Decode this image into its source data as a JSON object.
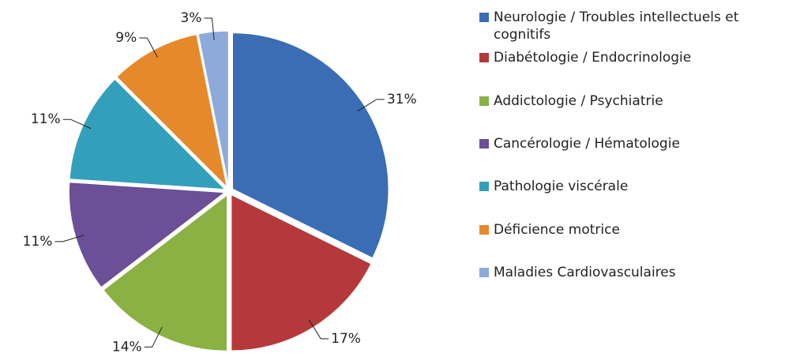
{
  "chart_data": {
    "type": "pie",
    "categories": [
      "Neurologie / Troubles intellectuels et cognitifs",
      "Diabétologie / Endocrinologie",
      "Addictologie / Psychiatrie",
      "Cancérologie / Hématologie",
      "Pathologie viscérale",
      "Déficience motrice",
      "Maladies Cardiovasculaires"
    ],
    "values": [
      31,
      17,
      14,
      11,
      11,
      9,
      3
    ],
    "value_labels": [
      "31%",
      "17%",
      "14%",
      "11%",
      "11%",
      "9%",
      "3%"
    ],
    "colors": [
      "#3a6db4",
      "#b5393a",
      "#8bb043",
      "#6b4f97",
      "#33a0bb",
      "#e5892b",
      "#8eaadb"
    ],
    "legend": "right"
  }
}
